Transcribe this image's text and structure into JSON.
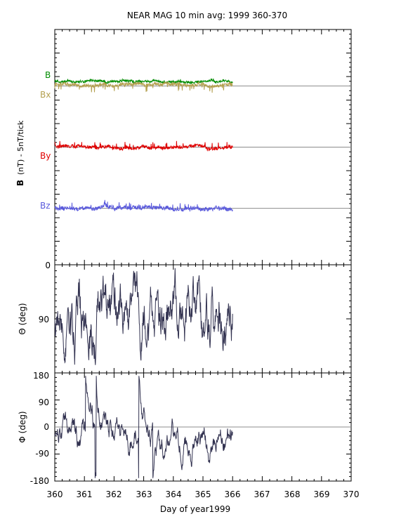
{
  "chart_data": {
    "type": "line",
    "title": "NEAR MAG 10 min avg: 1999 360-370",
    "xlabel": "Day of year1999",
    "xlim": [
      360,
      370
    ],
    "x_ticks": [
      "360",
      "361",
      "362",
      "363",
      "364",
      "365",
      "366",
      "367",
      "368",
      "369",
      "370"
    ],
    "data_range": [
      360,
      366
    ],
    "panels": [
      {
        "name": "B",
        "ylabel_bold": "B",
        "ylabel_rest": "(nT) - 5nT/tick",
        "y_zero_label": "0",
        "series": [
          {
            "name": "B",
            "color": "#008c00",
            "baseline_tick": 38,
            "mean_offset": 2.0,
            "noise": 0.8,
            "spikes": 0.6
          },
          {
            "name": "Bx",
            "color": "#b4a050",
            "baseline_tick": 38,
            "mean_offset": 0.6,
            "noise": 1.3,
            "spikes": -1.6
          },
          {
            "name": "By",
            "color": "#e00000",
            "baseline_tick": 25,
            "mean_offset": 0.0,
            "noise": 1.2,
            "spikes": 1.5
          },
          {
            "name": "Bz",
            "color": "#5a5adc",
            "baseline_tick": 12,
            "mean_offset": 0.0,
            "noise": 1.5,
            "spikes": 1.4
          }
        ]
      },
      {
        "name": "theta",
        "ylabel": "Θ (deg)",
        "ylim": [
          180,
          0
        ],
        "y_tick_labels": [
          "90"
        ],
        "series": [
          {
            "name": "Theta",
            "color": "#323250"
          }
        ]
      },
      {
        "name": "phi",
        "ylabel": "Φ (deg)",
        "ylim": [
          -180,
          180
        ],
        "y_tick_labels": [
          "180",
          "90",
          "0",
          "-90",
          "-180"
        ],
        "series": [
          {
            "name": "Phi",
            "color": "#323250"
          }
        ]
      }
    ]
  }
}
